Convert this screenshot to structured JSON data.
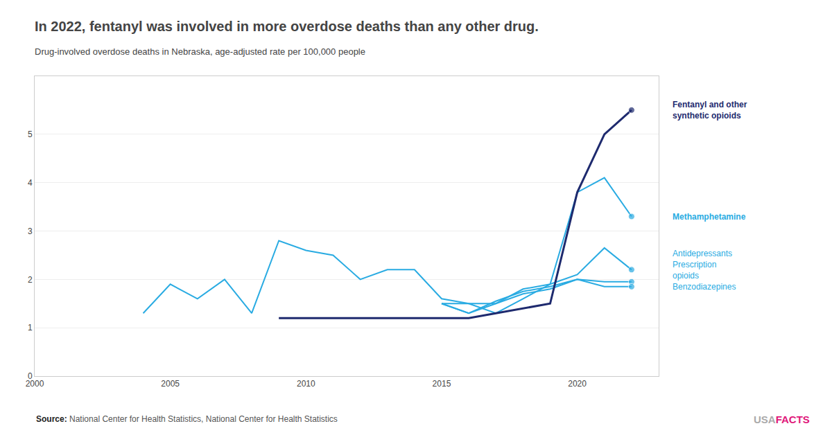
{
  "chart_data": {
    "type": "line",
    "title": "In 2022, fentanyl was involved in more overdose deaths than any other drug.",
    "subtitle": "Drug-involved overdose deaths in Nebraska, age-adjusted rate per 100,000 people",
    "annotations": [
      {
        "text": "Source:",
        "color": "#222222"
      },
      {
        "text": "National Center for Health Statistics, National Center for Health Statistics",
        "color": "#555555"
      },
      {
        "text": "USA",
        "color": "#aaaaaa"
      },
      {
        "text": "FACTS",
        "color": "#e0187a"
      }
    ],
    "x": [
      2004,
      2005,
      2006,
      2007,
      2008,
      2009,
      2010,
      2011,
      2012,
      2013,
      2014,
      2015,
      2016,
      2017,
      2018,
      2019,
      2020,
      2021,
      2022
    ],
    "series": [
      {
        "name": "Methamphetamine",
        "color": "#29abe2",
        "values": [
          1.3,
          1.9,
          1.6,
          2.0,
          1.3,
          2.8,
          2.6,
          2.5,
          2.0,
          2.2,
          2.2,
          1.6,
          1.5,
          1.3,
          1.6,
          1.9,
          3.8,
          4.1,
          3.3
        ]
      },
      {
        "name": "Antidepressants",
        "color": "#29abe2",
        "values": [
          null,
          null,
          null,
          null,
          null,
          null,
          null,
          null,
          null,
          null,
          null,
          1.5,
          1.5,
          1.5,
          1.8,
          1.9,
          2.1,
          2.65,
          2.2
        ]
      },
      {
        "name": "Prescription\nopioids",
        "color": "#29abe2",
        "values": [
          null,
          null,
          null,
          null,
          null,
          null,
          null,
          null,
          null,
          null,
          null,
          1.5,
          1.3,
          1.55,
          1.75,
          1.85,
          2.0,
          1.95,
          1.95
        ]
      },
      {
        "name": "Benzodiazepines",
        "color": "#29abe2",
        "values": [
          null,
          null,
          null,
          null,
          null,
          null,
          null,
          null,
          null,
          null,
          null,
          1.5,
          1.3,
          1.5,
          1.7,
          1.8,
          2.0,
          1.85,
          1.85
        ]
      },
      {
        "name": "Fentanyl and other\nsynthetic opioids",
        "color": "#1e2a6e",
        "values": [
          null,
          null,
          null,
          null,
          null,
          1.2,
          1.2,
          1.2,
          1.2,
          1.2,
          1.2,
          1.2,
          1.2,
          1.3,
          1.4,
          1.5,
          3.8,
          5.0,
          5.5
        ]
      }
    ],
    "xlim": [
      2000,
      2023
    ],
    "ylim": [
      0,
      6.2
    ],
    "xticks": [
      2000,
      2005,
      2010,
      2015,
      2020
    ],
    "yticks": [
      0,
      1,
      2,
      3,
      4,
      5
    ],
    "grid": true
  }
}
